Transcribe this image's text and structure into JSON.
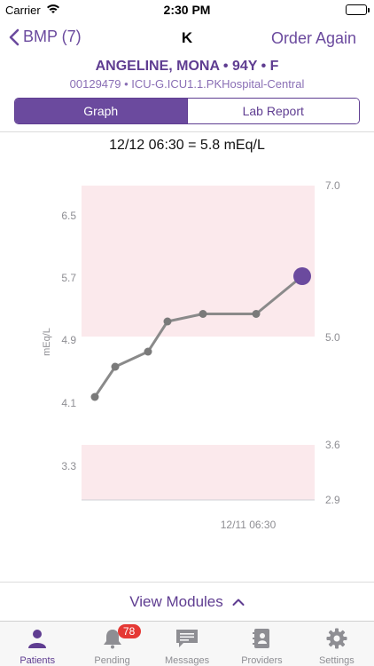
{
  "status_bar": {
    "carrier": "Carrier",
    "time": "2:30 PM"
  },
  "nav": {
    "back_label": "BMP (7)",
    "title": "K",
    "action_label": "Order Again"
  },
  "patient": {
    "name": "ANGELINE, MONA • 94Y • F",
    "meta": "00129479 • ICU-G.ICU1.1.PKHospital-Central"
  },
  "tabs_segment": {
    "graph_label": "Graph",
    "lab_report_label": "Lab Report",
    "selected": "Graph"
  },
  "reading": "12/12 06:30 = 5.8 mEq/L",
  "chart_data": {
    "type": "line",
    "ylabel": "mEq/L",
    "left_ticks": [
      "6.5",
      "5.7",
      "4.9",
      "4.1",
      "3.3"
    ],
    "right_ticks": [
      "7.0",
      "5.0",
      "3.6",
      "2.9"
    ],
    "x_label": "12/11 06:30",
    "bands": [
      {
        "name": "high",
        "from": 5.0,
        "to": 7.0,
        "color": "#fbe9ec"
      },
      {
        "name": "low",
        "from": 2.9,
        "to": 3.6,
        "color": "#fbe9ec"
      }
    ],
    "series": [
      {
        "values": [
          4.2,
          4.6,
          4.8,
          5.2,
          5.3,
          5.3,
          5.8
        ]
      }
    ],
    "line_color": "#8a8a8a",
    "highlight_color": "#6b4a9e"
  },
  "view_modules_label": "View Modules",
  "tab_bar": {
    "items": [
      {
        "label": "Patients",
        "icon": "person-icon",
        "active": true
      },
      {
        "label": "Pending",
        "icon": "bell-icon",
        "badge": "78"
      },
      {
        "label": "Messages",
        "icon": "message-icon"
      },
      {
        "label": "Providers",
        "icon": "contacts-icon"
      },
      {
        "label": "Settings",
        "icon": "gear-icon"
      }
    ]
  },
  "colors": {
    "accent": "#6b4a9e",
    "badge": "#e53935"
  }
}
